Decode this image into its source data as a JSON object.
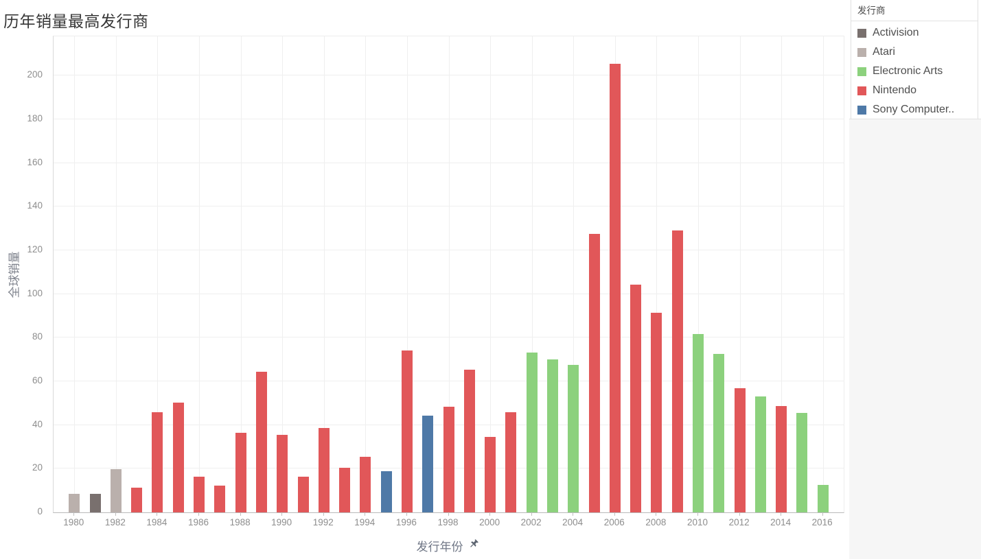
{
  "title": "历年销量最高发行商",
  "y_axis": {
    "title": "全球销量",
    "ticks": [
      0,
      20,
      40,
      60,
      80,
      100,
      120,
      140,
      160,
      180,
      200
    ]
  },
  "x_axis": {
    "title": "发行年份",
    "tick_years": [
      1980,
      1982,
      1984,
      1986,
      1988,
      1990,
      1992,
      1994,
      1996,
      1998,
      2000,
      2002,
      2004,
      2006,
      2008,
      2010,
      2012,
      2014,
      2016
    ]
  },
  "legend": {
    "title": "发行商",
    "items": [
      {
        "label": "Activision",
        "color": "#79706e"
      },
      {
        "label": "Atari",
        "color": "#bab0ac"
      },
      {
        "label": "Electronic Arts",
        "color": "#8cd17d"
      },
      {
        "label": "Nintendo",
        "color": "#e15759"
      },
      {
        "label": "Sony Computer..",
        "color": "#4e79a7"
      }
    ]
  },
  "chart_data": {
    "type": "bar",
    "title": "历年销量最高发行商",
    "xlabel": "发行年份",
    "ylabel": "全球销量",
    "ylim": [
      0,
      218
    ],
    "xlim": [
      1979,
      2017
    ],
    "grid": true,
    "legend_position": "top-right",
    "series_colors": {
      "Activision": "#79706e",
      "Atari": "#bab0ac",
      "Electronic Arts": "#8cd17d",
      "Nintendo": "#e15759",
      "Sony Computer..": "#4e79a7"
    },
    "points": [
      {
        "year": 1980,
        "publisher": "Atari",
        "global_sales": 8.5
      },
      {
        "year": 1981,
        "publisher": "Activision",
        "global_sales": 8.5
      },
      {
        "year": 1982,
        "publisher": "Atari",
        "global_sales": 19.8
      },
      {
        "year": 1983,
        "publisher": "Nintendo",
        "global_sales": 11.3
      },
      {
        "year": 1984,
        "publisher": "Nintendo",
        "global_sales": 45.8
      },
      {
        "year": 1985,
        "publisher": "Nintendo",
        "global_sales": 50.3
      },
      {
        "year": 1986,
        "publisher": "Nintendo",
        "global_sales": 16.5
      },
      {
        "year": 1987,
        "publisher": "Nintendo",
        "global_sales": 12.4
      },
      {
        "year": 1988,
        "publisher": "Nintendo",
        "global_sales": 36.5
      },
      {
        "year": 1989,
        "publisher": "Nintendo",
        "global_sales": 64.5
      },
      {
        "year": 1990,
        "publisher": "Nintendo",
        "global_sales": 35.6
      },
      {
        "year": 1991,
        "publisher": "Nintendo",
        "global_sales": 16.3
      },
      {
        "year": 1992,
        "publisher": "Nintendo",
        "global_sales": 38.7
      },
      {
        "year": 1993,
        "publisher": "Nintendo",
        "global_sales": 20.4
      },
      {
        "year": 1994,
        "publisher": "Nintendo",
        "global_sales": 25.6
      },
      {
        "year": 1995,
        "publisher": "Sony Computer..",
        "global_sales": 18.8
      },
      {
        "year": 1996,
        "publisher": "Nintendo",
        "global_sales": 74.0
      },
      {
        "year": 1997,
        "publisher": "Sony Computer..",
        "global_sales": 44.2
      },
      {
        "year": 1998,
        "publisher": "Nintendo",
        "global_sales": 48.5
      },
      {
        "year": 1999,
        "publisher": "Nintendo",
        "global_sales": 65.5
      },
      {
        "year": 2000,
        "publisher": "Nintendo",
        "global_sales": 34.6
      },
      {
        "year": 2001,
        "publisher": "Nintendo",
        "global_sales": 46.0
      },
      {
        "year": 2002,
        "publisher": "Electronic Arts",
        "global_sales": 73.2
      },
      {
        "year": 2003,
        "publisher": "Electronic Arts",
        "global_sales": 70.0
      },
      {
        "year": 2004,
        "publisher": "Electronic Arts",
        "global_sales": 67.6
      },
      {
        "year": 2005,
        "publisher": "Nintendo",
        "global_sales": 127.5
      },
      {
        "year": 2006,
        "publisher": "Nintendo",
        "global_sales": 205.5
      },
      {
        "year": 2007,
        "publisher": "Nintendo",
        "global_sales": 104.3
      },
      {
        "year": 2008,
        "publisher": "Nintendo",
        "global_sales": 91.3
      },
      {
        "year": 2009,
        "publisher": "Nintendo",
        "global_sales": 129.0
      },
      {
        "year": 2010,
        "publisher": "Electronic Arts",
        "global_sales": 81.6
      },
      {
        "year": 2011,
        "publisher": "Electronic Arts",
        "global_sales": 72.6
      },
      {
        "year": 2012,
        "publisher": "Nintendo",
        "global_sales": 57.0
      },
      {
        "year": 2013,
        "publisher": "Electronic Arts",
        "global_sales": 53.1
      },
      {
        "year": 2014,
        "publisher": "Nintendo",
        "global_sales": 48.8
      },
      {
        "year": 2015,
        "publisher": "Electronic Arts",
        "global_sales": 45.6
      },
      {
        "year": 2016,
        "publisher": "Electronic Arts",
        "global_sales": 12.6
      }
    ]
  }
}
